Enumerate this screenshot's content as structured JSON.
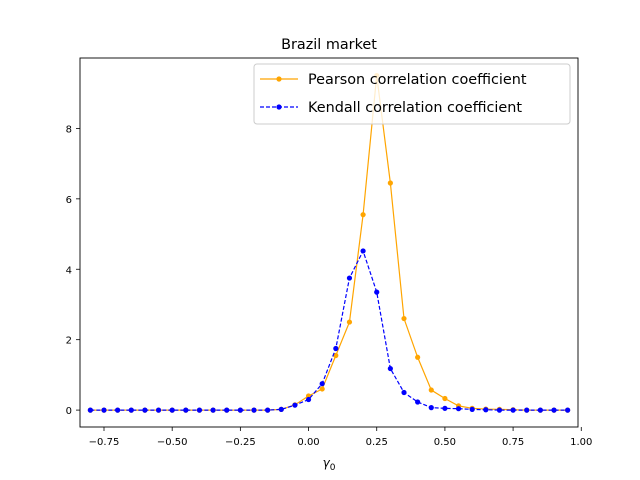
{
  "chart_data": {
    "type": "line",
    "title": "Brazil market",
    "xlabel": "γ",
    "xlabel_subscript": "0",
    "ylabel": "",
    "xlim": [
      -0.838,
      0.988
    ],
    "ylim": [
      -0.48,
      10.0
    ],
    "xticks": [
      -0.75,
      -0.5,
      -0.25,
      0.0,
      0.25,
      0.5,
      0.75,
      1.0
    ],
    "xtick_labels": [
      "−0.75",
      "−0.50",
      "−0.25",
      "0.00",
      "0.25",
      "0.50",
      "0.75",
      "1.00"
    ],
    "yticks": [
      0,
      2,
      4,
      6,
      8
    ],
    "ytick_labels": [
      "0",
      "2",
      "4",
      "6",
      "8"
    ],
    "grid": false,
    "legend_position": "top-right",
    "x": [
      -0.8,
      -0.75,
      -0.7,
      -0.65,
      -0.6,
      -0.55,
      -0.5,
      -0.45,
      -0.4,
      -0.35,
      -0.3,
      -0.25,
      -0.2,
      -0.15,
      -0.1,
      -0.05,
      0.0,
      0.05,
      0.1,
      0.15,
      0.2,
      0.25,
      0.3,
      0.35,
      0.4,
      0.45,
      0.5,
      0.55,
      0.6,
      0.65,
      0.7,
      0.75,
      0.8,
      0.85,
      0.9,
      0.95
    ],
    "series": [
      {
        "name": "Pearson correlation coefficient",
        "color": "#ffa500",
        "linestyle": "solid",
        "values": [
          0,
          0,
          0,
          0,
          0,
          0,
          0,
          0,
          0,
          0,
          0,
          0,
          0,
          0,
          0.02,
          0.15,
          0.4,
          0.6,
          1.55,
          2.5,
          5.55,
          9.5,
          6.45,
          2.6,
          1.5,
          0.57,
          0.33,
          0.12,
          0.05,
          0.03,
          0.02,
          0.01,
          0,
          0,
          0,
          0
        ]
      },
      {
        "name": "Kendall correlation coefficient",
        "color": "#0000ff",
        "linestyle": "dashed",
        "values": [
          0,
          0,
          0,
          0,
          0,
          0,
          0,
          0,
          0,
          0,
          0,
          0,
          0,
          0,
          0.02,
          0.14,
          0.3,
          0.75,
          1.75,
          3.75,
          4.52,
          3.35,
          1.18,
          0.5,
          0.23,
          0.07,
          0.05,
          0.04,
          0.02,
          0.01,
          0,
          0,
          0,
          0,
          0,
          0
        ]
      }
    ]
  }
}
